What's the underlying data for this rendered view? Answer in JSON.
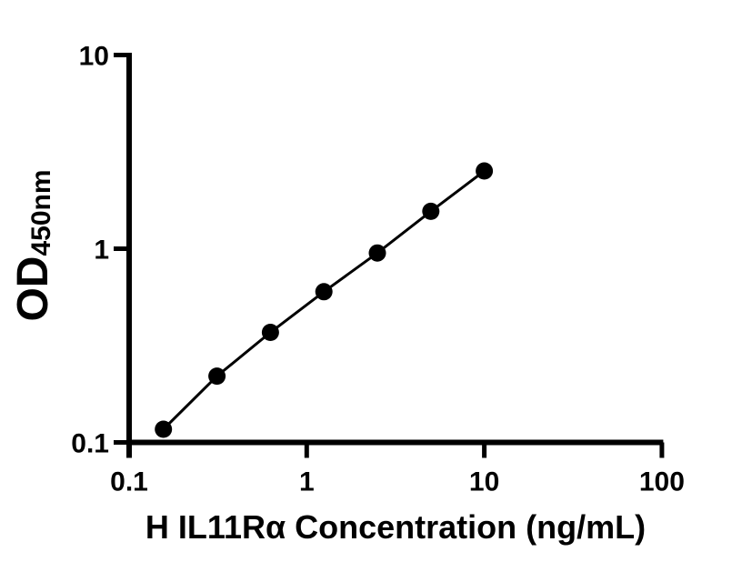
{
  "figure": {
    "background_color": "#ffffff",
    "ink_color": "#000000"
  },
  "chart_data": {
    "type": "scatter",
    "title": "",
    "xlabel": "H IL11Rα Concentration (ng/mL)",
    "ylabel": "OD",
    "ylabel_subscript": "450nm",
    "x_scale": "log",
    "y_scale": "log",
    "xlim": [
      0.1,
      100
    ],
    "ylim": [
      0.1,
      10
    ],
    "grid": false,
    "legend": false,
    "x_ticks": [
      {
        "value": 0.1,
        "label": "0.1"
      },
      {
        "value": 1,
        "label": "1"
      },
      {
        "value": 10,
        "label": "10"
      },
      {
        "value": 100,
        "label": "100"
      }
    ],
    "y_ticks": [
      {
        "value": 0.1,
        "label": "0.1"
      },
      {
        "value": 1,
        "label": "1"
      },
      {
        "value": 10,
        "label": "10"
      }
    ],
    "series": [
      {
        "name": "standard-curve",
        "marker": "filled-circle",
        "marker_color": "#000000",
        "line_color": "#000000",
        "x": [
          0.156,
          0.3125,
          0.625,
          1.25,
          2.5,
          5,
          10
        ],
        "y": [
          0.117,
          0.22,
          0.37,
          0.6,
          0.95,
          1.56,
          2.52
        ]
      }
    ]
  }
}
